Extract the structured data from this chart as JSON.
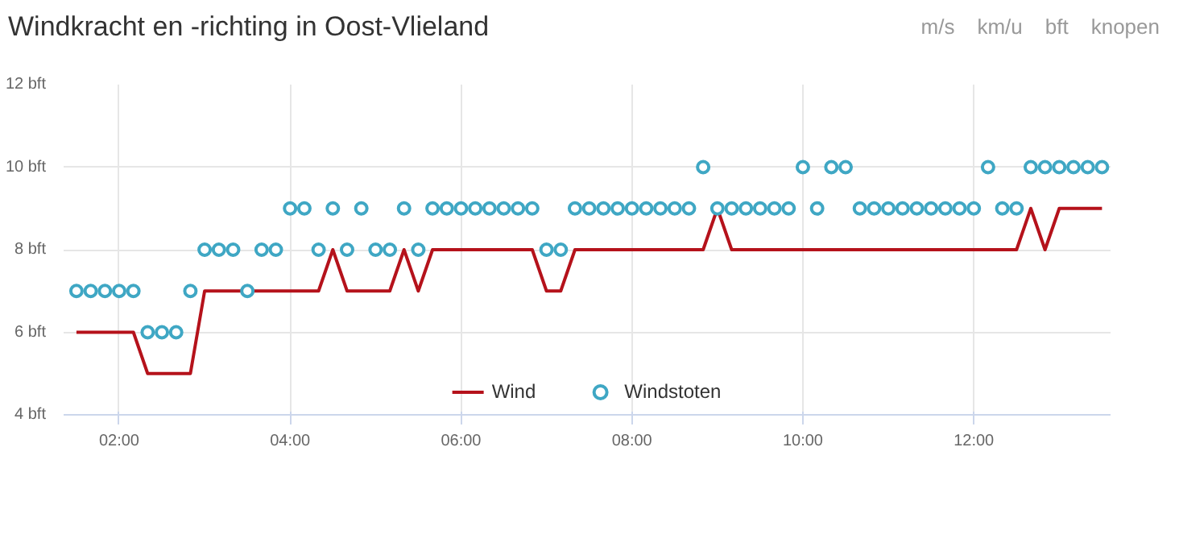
{
  "chart_data": {
    "type": "line",
    "title": "Windkracht en -richting in Oost-Vlieland",
    "annotations": [
      "m/s",
      "km/u",
      "bft",
      "knopen"
    ],
    "x": [
      1.5,
      1.6667,
      1.8333,
      2.0,
      2.1667,
      2.3333,
      2.5,
      2.6667,
      2.8333,
      3.0,
      3.1667,
      3.3333,
      3.5,
      3.6667,
      3.8333,
      4.0,
      4.1667,
      4.3333,
      4.5,
      4.6667,
      4.8333,
      5.0,
      5.1667,
      5.3333,
      5.5,
      5.6667,
      5.8333,
      6.0,
      6.1667,
      6.3333,
      6.5,
      6.6667,
      6.8333,
      7.0,
      7.1667,
      7.3333,
      7.5,
      7.6667,
      7.8333,
      8.0,
      8.1667,
      8.3333,
      8.5,
      8.6667,
      8.8333,
      9.0,
      9.1667,
      9.3333,
      9.5,
      9.6667,
      9.8333,
      10.0,
      10.1667,
      10.3333,
      10.5,
      10.6667,
      10.8333,
      11.0,
      11.1667,
      11.3333,
      11.5,
      11.6667,
      11.8333,
      12.0,
      12.1667,
      12.3333,
      12.5,
      12.6667,
      12.8333,
      13.0,
      13.1667,
      13.3333,
      13.5
    ],
    "series": [
      {
        "name": "Wind",
        "color": "#b5121b",
        "marker": "none",
        "values": [
          6,
          6,
          6,
          6,
          6,
          5,
          5,
          5,
          5,
          7,
          7,
          7,
          7,
          7,
          7,
          7,
          7,
          7,
          8,
          7,
          7,
          7,
          7,
          8,
          7,
          8,
          8,
          8,
          8,
          8,
          8,
          8,
          8,
          7,
          7,
          8,
          8,
          8,
          8,
          8,
          8,
          8,
          8,
          8,
          8,
          9,
          8,
          8,
          8,
          8,
          8,
          8,
          8,
          8,
          8,
          8,
          8,
          8,
          8,
          8,
          8,
          8,
          8,
          8,
          8,
          8,
          8,
          9,
          8,
          9,
          9,
          9,
          9
        ]
      },
      {
        "name": "Windstoten",
        "type": "scatter",
        "color": "#3fa7c4",
        "marker": "circle",
        "values": [
          7,
          7,
          7,
          7,
          7,
          6,
          6,
          6,
          7,
          8,
          8,
          8,
          7,
          8,
          8,
          9,
          9,
          8,
          9,
          8,
          9,
          8,
          8,
          9,
          8,
          9,
          9,
          9,
          9,
          9,
          9,
          9,
          9,
          8,
          8,
          9,
          9,
          9,
          9,
          9,
          9,
          9,
          9,
          9,
          10,
          9,
          9,
          9,
          9,
          9,
          9,
          10,
          9,
          10,
          10,
          9,
          9,
          9,
          9,
          9,
          9,
          9,
          9,
          9,
          10,
          9,
          9,
          10,
          10,
          10,
          10,
          10,
          10
        ]
      }
    ],
    "xlim": [
      1.35,
      13.6
    ],
    "xticks": [
      {
        "value": 2,
        "label": "02:00"
      },
      {
        "value": 4,
        "label": "04:00"
      },
      {
        "value": 6,
        "label": "06:00"
      },
      {
        "value": 8,
        "label": "08:00"
      },
      {
        "value": 10,
        "label": "10:00"
      },
      {
        "value": 12,
        "label": "12:00"
      }
    ],
    "ylim": [
      4,
      12
    ],
    "yticks": [
      {
        "value": 4,
        "label": "4 bft"
      },
      {
        "value": 6,
        "label": "6 bft"
      },
      {
        "value": 8,
        "label": "8 bft"
      },
      {
        "value": 10,
        "label": "10 bft"
      },
      {
        "value": 12,
        "label": "12 bft"
      }
    ],
    "grid": true,
    "legend": "bottom"
  }
}
